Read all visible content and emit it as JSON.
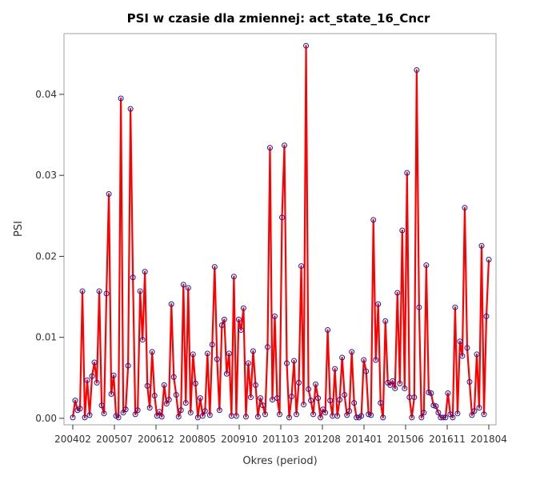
{
  "chart_data": {
    "type": "line",
    "title": "PSI w czasie dla zmiennej: act_state_16_Cncr",
    "xlabel": "Okres (period)",
    "ylabel": "PSI",
    "ylim": [
      -0.0008,
      0.0475
    ],
    "x_tick_labels": [
      "200402",
      "200507",
      "200612",
      "200805",
      "200910",
      "201103",
      "201208",
      "201401",
      "201506",
      "201611",
      "201804"
    ],
    "y_ticks": [
      0.0,
      0.01,
      0.02,
      0.03,
      0.04
    ],
    "y_tick_labels": [
      "0.00",
      "0.01",
      "0.02",
      "0.03",
      "0.04"
    ],
    "grid": false,
    "colors": {
      "line": "#ff0000",
      "marker": "#1a1aa6",
      "frame": "#a0a0a0",
      "axis": "#333333"
    },
    "series": [
      {
        "values": [
          0.0001,
          0.0022,
          0.001,
          0.0012,
          0.0157,
          0.0001,
          0.0047,
          0.0004,
          0.0052,
          0.0069,
          0.0044,
          0.0157,
          0.0016,
          0.0006,
          0.0154,
          0.0277,
          0.003,
          0.0053,
          0.0003,
          0.0001,
          0.0395,
          0.0007,
          0.0011,
          0.0065,
          0.0382,
          0.0174,
          0.0005,
          0.001,
          0.0157,
          0.0097,
          0.0181,
          0.004,
          0.0013,
          0.0082,
          0.0028,
          0.0003,
          0.0008,
          0.0002,
          0.0041,
          0.0018,
          0.0023,
          0.0141,
          0.0051,
          0.0029,
          0.0002,
          0.001,
          0.0165,
          0.0019,
          0.0161,
          0.0007,
          0.0079,
          0.0043,
          0.0001,
          0.0025,
          0.0003,
          0.0009,
          0.008,
          0.0004,
          0.0091,
          0.0187,
          0.0073,
          0.001,
          0.0115,
          0.0122,
          0.0055,
          0.008,
          0.0003,
          0.0175,
          0.0003,
          0.0122,
          0.0109,
          0.0136,
          0.0002,
          0.0068,
          0.0026,
          0.0083,
          0.0041,
          0.0002,
          0.0025,
          0.0016,
          0.0005,
          0.0088,
          0.0334,
          0.0023,
          0.0126,
          0.0025,
          0.0005,
          0.0248,
          0.0337,
          0.0068,
          0.0001,
          0.0027,
          0.0071,
          0.0005,
          0.0044,
          0.0188,
          0.0017,
          0.046,
          0.0036,
          0.0022,
          0.0005,
          0.0042,
          0.0025,
          0.0001,
          0.0011,
          0.0007,
          0.0109,
          0.0022,
          0.0003,
          0.0061,
          0.0003,
          0.0023,
          0.0075,
          0.0029,
          0.0004,
          0.0009,
          0.0082,
          0.0019,
          0.0001,
          0.0001,
          0.0003,
          0.0072,
          0.0058,
          0.0005,
          0.0004,
          0.0245,
          0.0072,
          0.0141,
          0.0019,
          0.0001,
          0.012,
          0.0044,
          0.0041,
          0.0046,
          0.0037,
          0.0155,
          0.0043,
          0.0232,
          0.0037,
          0.0303,
          0.0026,
          0.0001,
          0.0026,
          0.043,
          0.0137,
          0.0001,
          0.0007,
          0.0189,
          0.0032,
          0.0031,
          0.0016,
          0.0015,
          0.0007,
          0.0001,
          0.0001,
          0.0001,
          0.0031,
          0.0005,
          0.0001,
          0.0137,
          0.0006,
          0.0095,
          0.0077,
          0.026,
          0.0087,
          0.0045,
          0.0004,
          0.0009,
          0.0079,
          0.0013,
          0.0213,
          0.0005,
          0.0126,
          0.0196
        ]
      }
    ]
  }
}
